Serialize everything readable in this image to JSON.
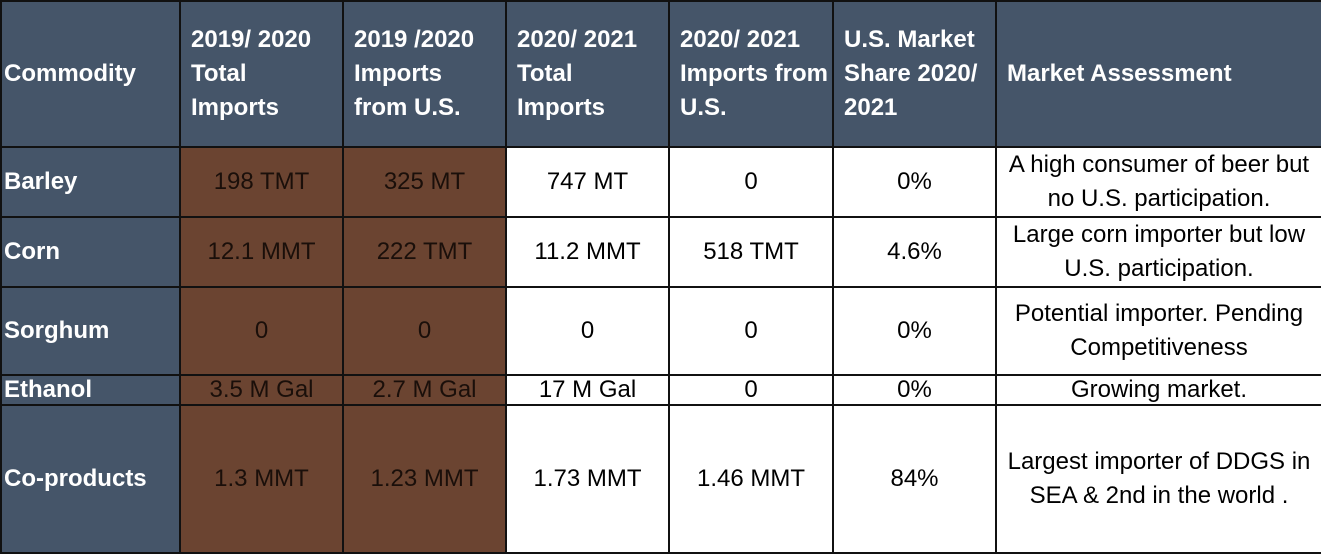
{
  "headers": [
    "Commodity",
    "2019/ 2020 Total Imports",
    "2019 /2020 Imports from U.S.",
    "2020/ 2021 Total Imports",
    "2020/ 2021 Imports from U.S.",
    "U.S. Market Share 2020/ 2021",
    "Market Assessment"
  ],
  "rows": [
    {
      "commodity": "Barley",
      "total_2019_2020": "198 TMT",
      "us_2019_2020": "325 MT",
      "total_2020_2021": "747 MT",
      "us_2020_2021": "0",
      "share": "0%",
      "assessment": "A high consumer of beer but no U.S. participation."
    },
    {
      "commodity": "Corn",
      "total_2019_2020": "12.1 MMT",
      "us_2019_2020": "222 TMT",
      "total_2020_2021": "11.2 MMT",
      "us_2020_2021": "518 TMT",
      "share": "4.6%",
      "assessment": "Large corn importer but low U.S. participation."
    },
    {
      "commodity": "Sorghum",
      "total_2019_2020": "0",
      "us_2019_2020": "0",
      "total_2020_2021": "0",
      "us_2020_2021": "0",
      "share": "0%",
      "assessment": "Potential importer. Pending Competitiveness"
    },
    {
      "commodity": "Ethanol",
      "total_2019_2020": "3.5 M Gal",
      "us_2019_2020": "2.7 M Gal",
      "total_2020_2021": "17 M Gal",
      "us_2020_2021": "0",
      "share": "0%",
      "assessment": "Growing market."
    },
    {
      "commodity": "Co-products",
      "total_2019_2020": "1.3 MMT",
      "us_2019_2020": "1.23 MMT",
      "total_2020_2021": "1.73 MMT",
      "us_2020_2021": "1.46 MMT",
      "share": "84%",
      "assessment": "Largest importer of DDGS in SEA & 2nd in the world ."
    }
  ],
  "colors": {
    "header_bg": "#455569",
    "highlight_bg": "#6b4431",
    "border": "#111111"
  }
}
